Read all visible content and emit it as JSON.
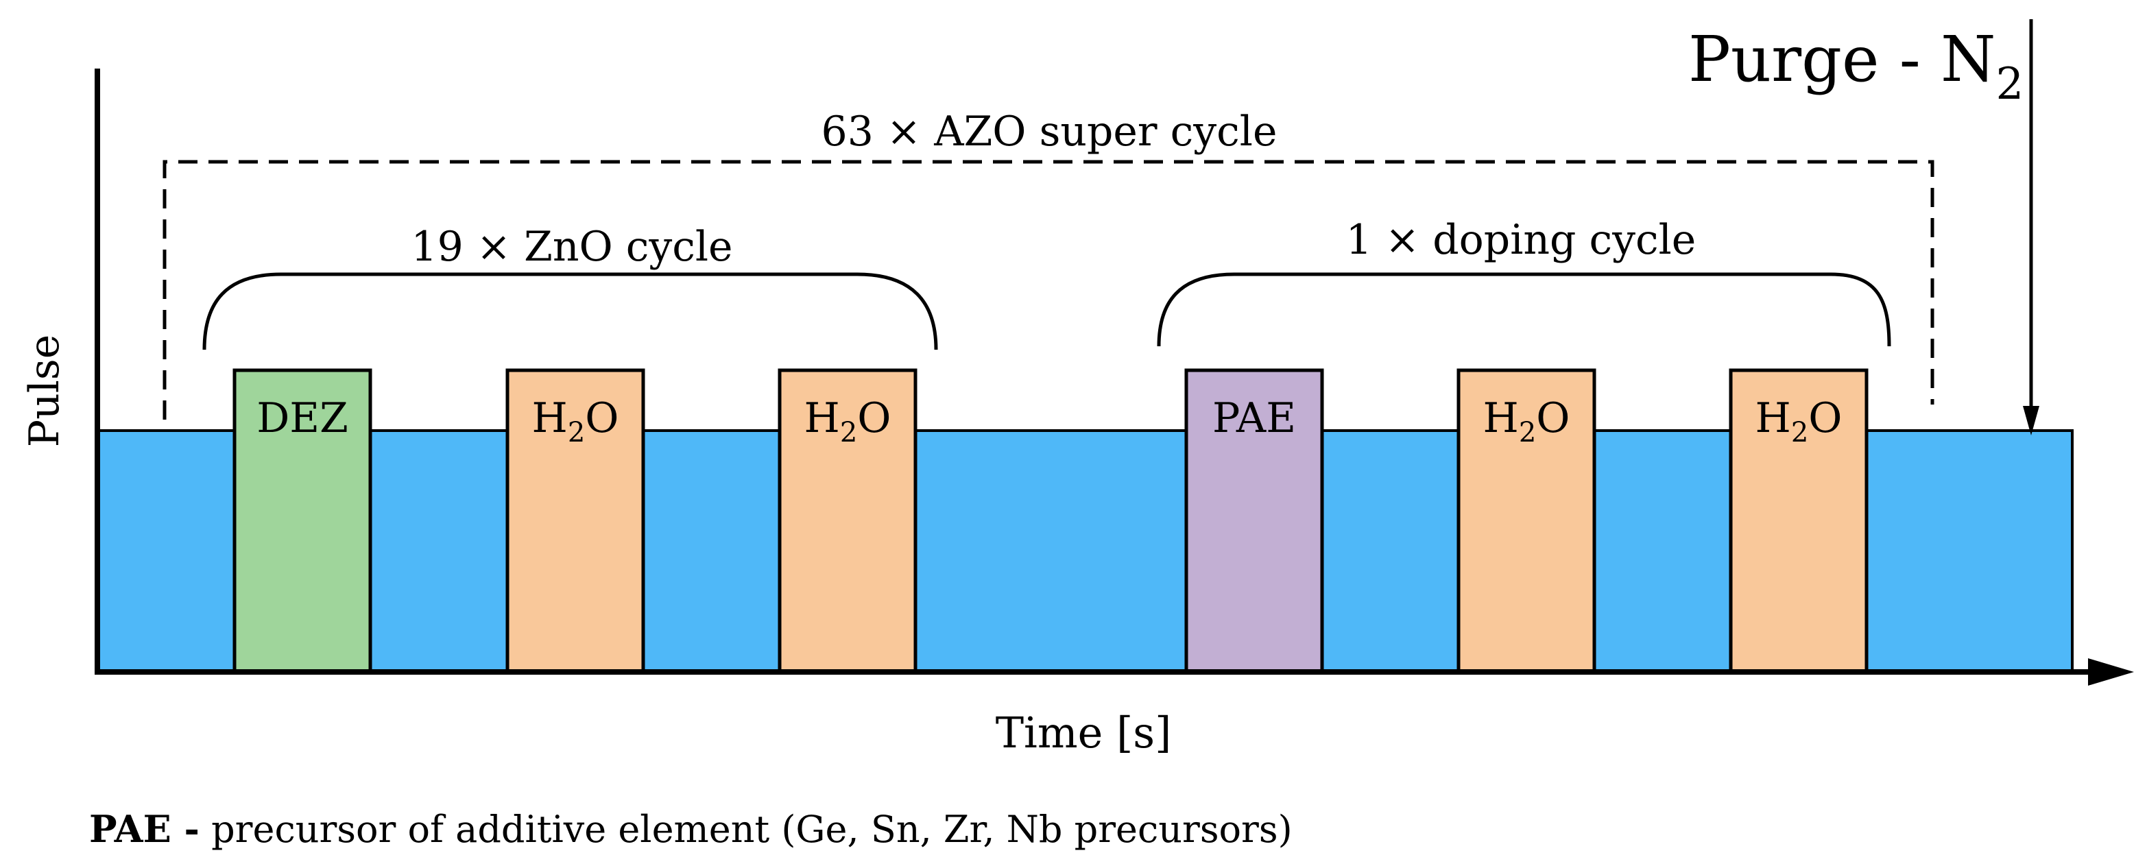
{
  "diagram": {
    "axes": {
      "y_label": "Pulse",
      "x_label": "Time [s]"
    },
    "purge_label": {
      "text": "Purge - N",
      "subscript": "2"
    },
    "super_cycle_label": "63 × AZO super cycle",
    "zno_cycle_label": "19 × ZnO cycle",
    "doping_cycle_label": "1 × doping cycle",
    "pulses": [
      {
        "label": "DEZ",
        "color": "#9fd59b"
      },
      {
        "label": "H",
        "subscript": "2",
        "label_suffix": "O",
        "color": "#f9c89a"
      },
      {
        "label": "H",
        "subscript": "2",
        "label_suffix": "O",
        "color": "#f9c89a"
      },
      {
        "label": "PAE",
        "color": "#c2afd3"
      },
      {
        "label": "H",
        "subscript": "2",
        "label_suffix": "O",
        "color": "#f9c89a"
      },
      {
        "label": "H",
        "subscript": "2",
        "label_suffix": "O",
        "color": "#f9c89a"
      }
    ],
    "purge_color": "#4fb8f8",
    "footnote": {
      "bold": "PAE -",
      "text": " precursor of additive element  (Ge, Sn, Zr, Nb precursors)"
    }
  }
}
